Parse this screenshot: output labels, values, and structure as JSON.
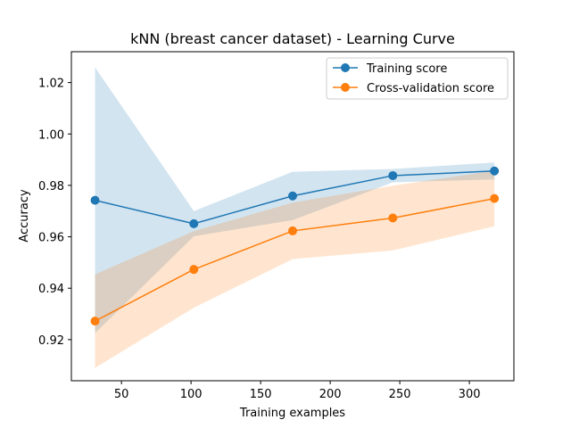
{
  "chart_data": {
    "type": "line",
    "title": "kNN (breast cancer dataset) - Learning Curve",
    "xlabel": "Training examples",
    "ylabel": "Accuracy",
    "xlim": [
      14,
      332
    ],
    "ylim": [
      0.904,
      1.032
    ],
    "xticks": [
      50,
      100,
      150,
      200,
      250,
      300
    ],
    "yticks": [
      0.92,
      0.94,
      0.96,
      0.98,
      1.0,
      1.02
    ],
    "ytick_labels": [
      "0.92",
      "0.94",
      "0.96",
      "0.98",
      "1.00",
      "1.02"
    ],
    "grid": false,
    "legend_position": "top-right",
    "x": [
      31,
      102,
      173,
      245,
      318
    ],
    "series": [
      {
        "name": "Training score",
        "color": "#1f77b4",
        "band_color": "#1f77b4",
        "values": [
          0.9742,
          0.9651,
          0.9759,
          0.9838,
          0.9856
        ],
        "lower": [
          0.9225,
          0.9602,
          0.9665,
          0.9812,
          0.9823
        ],
        "upper": [
          1.0259,
          0.97,
          0.9853,
          0.9864,
          0.9889
        ]
      },
      {
        "name": "Cross-validation score",
        "color": "#ff7f0e",
        "band_color": "#ff7f0e",
        "values": [
          0.9272,
          0.9473,
          0.9623,
          0.9673,
          0.9749
        ],
        "lower": [
          0.909,
          0.9324,
          0.9513,
          0.9547,
          0.9641
        ],
        "upper": [
          0.9454,
          0.9622,
          0.9733,
          0.9799,
          0.9857
        ]
      }
    ]
  }
}
